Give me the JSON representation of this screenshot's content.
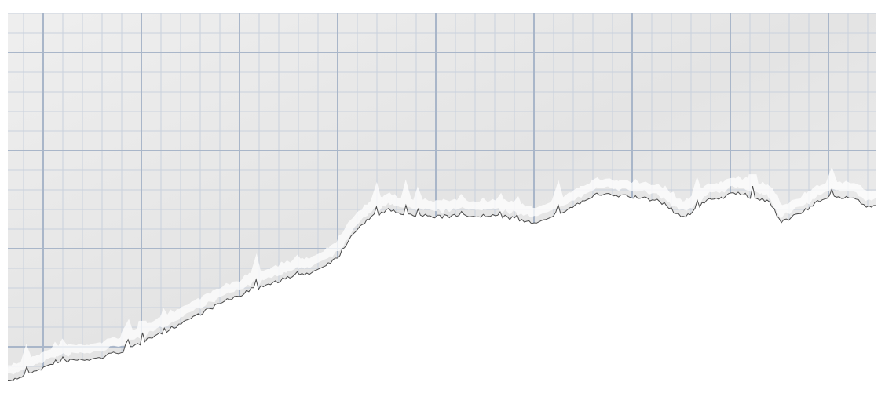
{
  "image": {
    "subject": "torn-graph-paper",
    "colors": {
      "paper": "#efefef",
      "paper_shade": "#e4e4e4",
      "minor_grid": "#c9d1dd",
      "major_grid": "#a9b6c9",
      "tear_edge": "#4a4a4a",
      "background": "#ffffff"
    }
  }
}
